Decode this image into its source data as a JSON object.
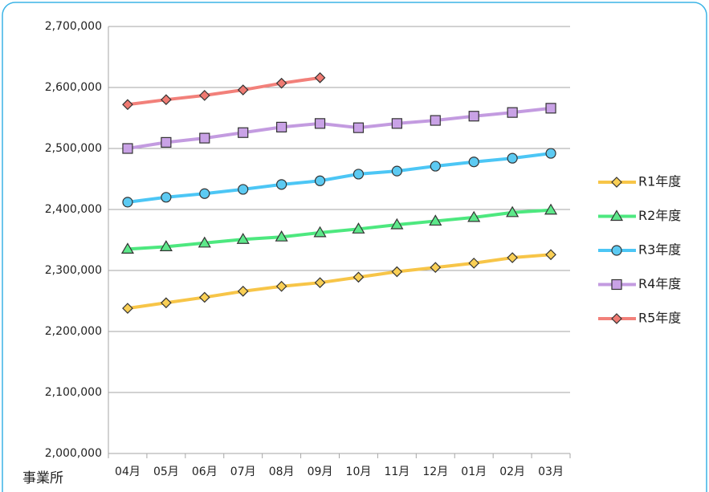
{
  "chart_data": {
    "type": "line",
    "x_label": "事業所",
    "categories": [
      "04月",
      "05月",
      "06月",
      "07月",
      "08月",
      "09月",
      "10月",
      "11月",
      "12月",
      "01月",
      "02月",
      "03月"
    ],
    "series": [
      {
        "name": "R1年度",
        "color": "#f7c548",
        "marker_fill": "#f9cf55",
        "marker": "diamond",
        "values": [
          2238000,
          2247000,
          2256000,
          2266000,
          2274000,
          2280000,
          2289000,
          2298000,
          2305000,
          2312000,
          2321000,
          2326000
        ]
      },
      {
        "name": "R2年度",
        "color": "#4de87f",
        "marker_fill": "#5de88a",
        "marker": "triangle",
        "values": [
          2335000,
          2339000,
          2345000,
          2351000,
          2355000,
          2362000,
          2368000,
          2375000,
          2381000,
          2387000,
          2395000,
          2399000
        ]
      },
      {
        "name": "R3年度",
        "color": "#4cc6f5",
        "marker_fill": "#5ccaf2",
        "marker": "circle",
        "values": [
          2412000,
          2420000,
          2426000,
          2433000,
          2441000,
          2447000,
          2458000,
          2463000,
          2471000,
          2478000,
          2484000,
          2492000
        ]
      },
      {
        "name": "R4年度",
        "color": "#c39be0",
        "marker_fill": "#c9a2e6",
        "marker": "square",
        "values": [
          2500000,
          2510000,
          2517000,
          2526000,
          2535000,
          2541000,
          2534000,
          2541000,
          2546000,
          2553000,
          2559000,
          2566000
        ]
      },
      {
        "name": "R5年度",
        "color": "#f2807a",
        "marker_fill": "#ef7a72",
        "marker": "diamond",
        "values": [
          2572000,
          2580000,
          2587000,
          2596000,
          2607000,
          2616000,
          null,
          null,
          null,
          null,
          null,
          null
        ]
      }
    ],
    "ylim": [
      2000000,
      2700000
    ],
    "yticks": [
      {
        "value": 2000000,
        "label": "2,000,000"
      },
      {
        "value": 2100000,
        "label": "2,100,000"
      },
      {
        "value": 2200000,
        "label": "2,200,000"
      },
      {
        "value": 2300000,
        "label": "2,300,000"
      },
      {
        "value": 2400000,
        "label": "2,400,000"
      },
      {
        "value": 2500000,
        "label": "2,500,000"
      },
      {
        "value": 2600000,
        "label": "2,600,000"
      },
      {
        "value": 2700000,
        "label": "2,700,000"
      }
    ],
    "grid": true,
    "legend": "right"
  }
}
